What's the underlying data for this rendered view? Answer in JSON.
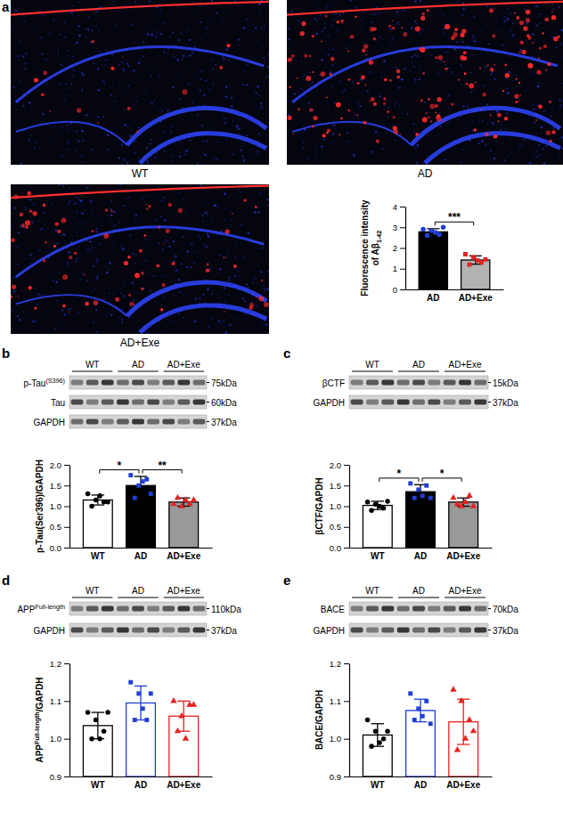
{
  "chart_data": [
    {
      "type": "bar",
      "categories": [
        "AD",
        "AD+Exe"
      ],
      "values": [
        2.78,
        1.42
      ],
      "errors": [
        0.15,
        0.2
      ],
      "points": [
        [
          2.9,
          2.6,
          2.85,
          2.75,
          2.65,
          3.0
        ],
        [
          1.7,
          1.2,
          1.55,
          1.4,
          1.3,
          1.45
        ]
      ],
      "colors": [
        "#000000",
        "#b3b3b3"
      ],
      "y_label": [
        "Fluorescence intensity",
        [
          "of Aβ",
          {
            "sub": "1-42"
          }
        ]
      ],
      "ylim": [
        0,
        4
      ],
      "yticks": [
        0,
        1,
        2,
        3,
        4
      ],
      "annotations": [
        {
          "between": [
            "AD",
            "AD+Exe"
          ],
          "label": "***"
        }
      ]
    },
    {
      "type": "bar",
      "categories": [
        "WT",
        "AD",
        "AD+Exe"
      ],
      "values": [
        1.15,
        1.5,
        1.1
      ],
      "errors": [
        0.12,
        0.22,
        0.1
      ],
      "points": [
        [
          1.3,
          1.0,
          1.15,
          1.25,
          1.1,
          1.1
        ],
        [
          1.75,
          1.2,
          1.5,
          1.6,
          1.65,
          1.3
        ],
        [
          1.05,
          1.2,
          1.0,
          1.15,
          1.05,
          1.15
        ]
      ],
      "colors": [
        "#ffffff",
        "#000000",
        "#999999"
      ],
      "y_label": [
        "p-Tau(Ser396)/GAPDH"
      ],
      "ylim": [
        0,
        2
      ],
      "yticks": [
        {
          "value": 0,
          "label": "0.0"
        },
        0.5,
        {
          "value": 1,
          "label": "1.0"
        },
        1.5,
        {
          "value": 2,
          "label": "2.0"
        }
      ],
      "annotations": [
        {
          "between": [
            "WT",
            "AD"
          ],
          "label": "*"
        },
        {
          "between": [
            "AD",
            "AD+Exe"
          ],
          "label": "**"
        }
      ]
    },
    {
      "type": "bar",
      "categories": [
        "WT",
        "AD",
        "AD+Exe"
      ],
      "values": [
        1.02,
        1.35,
        1.1
      ],
      "errors": [
        0.1,
        0.17,
        0.1
      ],
      "points": [
        [
          1.1,
          0.9,
          1.05,
          1.0,
          0.95,
          1.12
        ],
        [
          1.55,
          1.2,
          1.4,
          1.25,
          1.5,
          1.2
        ],
        [
          1.2,
          1.05,
          1.0,
          1.1,
          1.25,
          1.0
        ]
      ],
      "colors": [
        "#ffffff",
        "#000000",
        "#999999"
      ],
      "y_label": [
        "βCTF/GAPDH"
      ],
      "ylim": [
        0,
        2
      ],
      "yticks": [
        {
          "value": 0,
          "label": "0.0"
        },
        0.5,
        {
          "value": 1,
          "label": "1.0"
        },
        1.5,
        {
          "value": 2,
          "label": "2.0"
        }
      ],
      "annotations": [
        {
          "between": [
            "WT",
            "AD"
          ],
          "label": "*"
        },
        {
          "between": [
            "AD",
            "AD+Exe"
          ],
          "label": "*"
        }
      ]
    },
    {
      "type": "bar",
      "categories": [
        "WT",
        "AD",
        "AD+Exe"
      ],
      "values": [
        1.035,
        1.095,
        1.06
      ],
      "errors": [
        0.035,
        0.045,
        0.04
      ],
      "points": [
        [
          1.07,
          1.0,
          1.05,
          1.0,
          1.02,
          1.07
        ],
        [
          1.15,
          1.05,
          1.12,
          1.08,
          1.05,
          1.12
        ],
        [
          1.1,
          1.02,
          1.06,
          1.0,
          1.09,
          1.09
        ]
      ],
      "colors": [
        "#ffffff",
        "#ffffff",
        "#ffffff"
      ],
      "y_label": [
        [
          "APP",
          {
            "sup": "Full-length"
          },
          "/GAPDH"
        ]
      ],
      "ylim": [
        0.9,
        1.2
      ],
      "yticks": [
        0.9,
        {
          "value": 1,
          "label": "1.0"
        },
        1.1,
        1.2
      ]
    },
    {
      "type": "bar",
      "categories": [
        "WT",
        "AD",
        "AD+Exe"
      ],
      "values": [
        1.01,
        1.075,
        1.045
      ],
      "errors": [
        0.03,
        0.03,
        0.06
      ],
      "points": [
        [
          1.05,
          0.98,
          1.02,
          0.99,
          1.0,
          1.02
        ],
        [
          1.12,
          1.05,
          1.08,
          1.06,
          1.1,
          1.04
        ],
        [
          1.13,
          0.97,
          1.1,
          1.0,
          1.05,
          1.02
        ]
      ],
      "colors": [
        "#ffffff",
        "#ffffff",
        "#ffffff"
      ],
      "y_label": [
        "BACE/GAPDH"
      ],
      "ylim": [
        0.9,
        1.2
      ],
      "yticks": [
        0.9,
        {
          "value": 1,
          "label": "1.0"
        },
        1.1,
        1.2
      ]
    }
  ],
  "panels": [
    {
      "label": "a",
      "images": [
        "WT",
        "AD",
        "AD+Exe"
      ]
    },
    {
      "label": "b",
      "blot": {
        "groups": [
          "WT",
          "AD",
          "AD+Exe"
        ],
        "rows": [
          {
            "name": [
              "p-Tau",
              {
                "sup": "(S396)"
              }
            ],
            "kda": "75kDa"
          },
          {
            "name": "Tau",
            "kda": "60kDa"
          },
          {
            "name": "GAPDH",
            "kda": "37kDa"
          }
        ]
      }
    },
    {
      "label": "c",
      "blot": {
        "groups": [
          "WT",
          "AD",
          "AD+Exe"
        ],
        "rows": [
          {
            "name": "βCTF",
            "kda": "15kDa"
          },
          {
            "name": "GAPDH",
            "kda": "37kDa"
          }
        ]
      }
    },
    {
      "label": "d",
      "blot": {
        "groups": [
          "WT",
          "AD",
          "AD+Exe"
        ],
        "rows": [
          {
            "name": [
              "APP",
              {
                "sup": "Full-length"
              }
            ],
            "kda": "110kDa"
          },
          {
            "name": "GAPDH",
            "kda": "37kDa"
          }
        ]
      }
    },
    {
      "label": "e",
      "blot": {
        "groups": [
          "WT",
          "AD",
          "AD+Exe"
        ],
        "rows": [
          {
            "name": "BACE",
            "kda": "70kDa"
          },
          {
            "name": "GAPDH",
            "kda": "37kDa"
          }
        ]
      }
    }
  ]
}
